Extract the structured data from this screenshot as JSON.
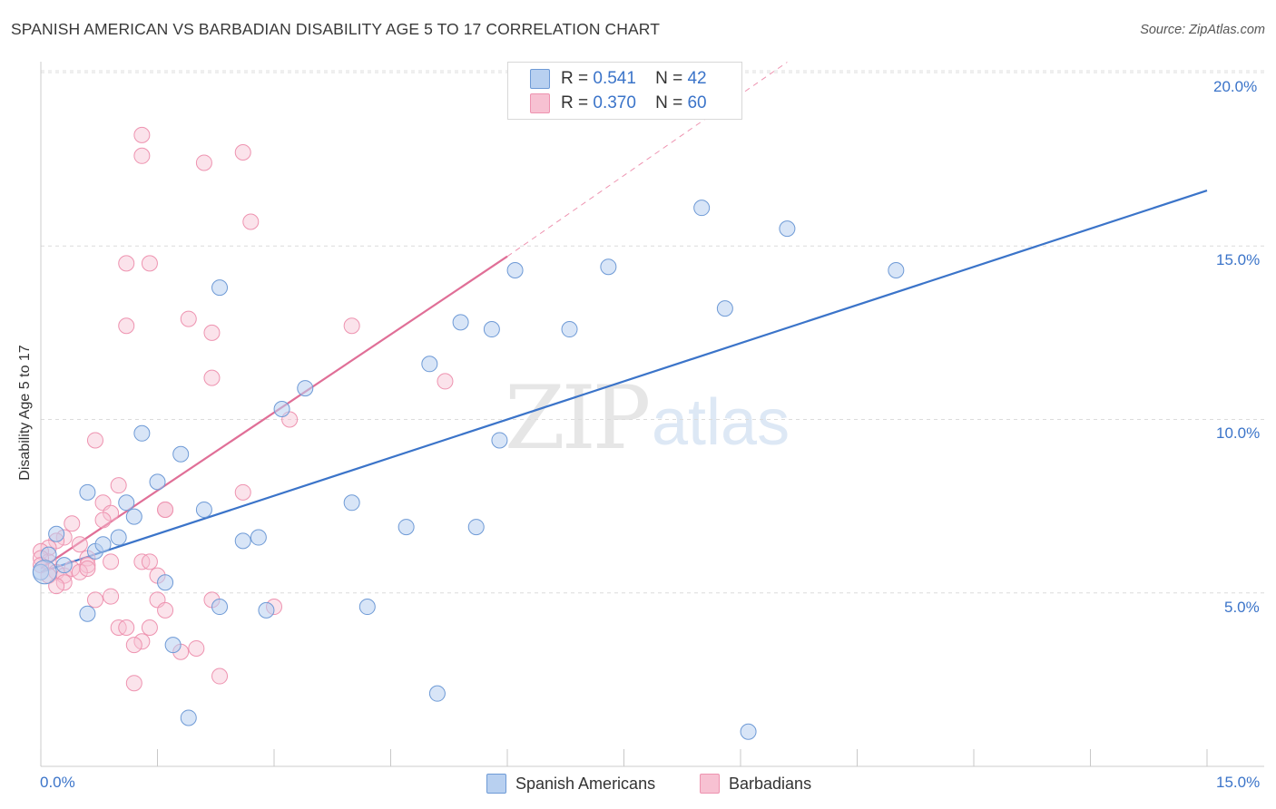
{
  "title": "SPANISH AMERICAN VS BARBADIAN DISABILITY AGE 5 TO 17 CORRELATION CHART",
  "source": "Source: ZipAtlas.com",
  "watermark": {
    "zip": "ZIP",
    "atlas": "atlas"
  },
  "colors": {
    "blue": "#3b74c9",
    "blue_fill": "#b8d0f0",
    "blue_stroke": "#6e9ad6",
    "pink": "#e06f97",
    "pink_fill": "#f7c1d2",
    "pink_stroke": "#ee93b0"
  },
  "legend_top": [
    {
      "r_label": "R =",
      "r_value": "0.541",
      "n_label": "N =",
      "n_value": "42"
    },
    {
      "r_label": "R =",
      "r_value": "0.370",
      "n_label": "N =",
      "n_value": "60"
    }
  ],
  "legend_bottom": [
    {
      "label": "Spanish Americans"
    },
    {
      "label": "Barbadians"
    }
  ],
  "chart_data": {
    "type": "scatter",
    "title": "SPANISH AMERICAN VS BARBADIAN DISABILITY AGE 5 TO 17 CORRELATION CHART",
    "xlabel": "",
    "ylabel": "Disability Age 5 to 17",
    "xlim": [
      0,
      15
    ],
    "ylim": [
      0,
      20
    ],
    "x_tick_labels": [
      "0.0%",
      "15.0%"
    ],
    "y_tick_labels": [
      "5.0%",
      "10.0%",
      "15.0%",
      "20.0%"
    ],
    "y_ticks": [
      5,
      10,
      15,
      20
    ],
    "grid": true,
    "series": [
      {
        "name": "Spanish Americans",
        "color": "#3b74c9",
        "points": [
          [
            0.6,
            7.9
          ],
          [
            0.7,
            6.2
          ],
          [
            1.0,
            6.6
          ],
          [
            1.1,
            7.6
          ],
          [
            1.2,
            7.2
          ],
          [
            1.3,
            9.6
          ],
          [
            1.5,
            8.2
          ],
          [
            1.8,
            9.0
          ],
          [
            1.6,
            5.3
          ],
          [
            1.7,
            3.5
          ],
          [
            1.9,
            1.4
          ],
          [
            2.1,
            7.4
          ],
          [
            2.3,
            13.8
          ],
          [
            2.3,
            4.6
          ],
          [
            2.6,
            6.5
          ],
          [
            2.8,
            6.6
          ],
          [
            2.9,
            4.5
          ],
          [
            3.1,
            10.3
          ],
          [
            3.4,
            10.9
          ],
          [
            4.0,
            7.6
          ],
          [
            4.2,
            4.6
          ],
          [
            4.7,
            6.9
          ],
          [
            5.0,
            11.6
          ],
          [
            5.4,
            12.8
          ],
          [
            5.1,
            2.1
          ],
          [
            5.6,
            6.9
          ],
          [
            5.8,
            12.6
          ],
          [
            5.9,
            9.4
          ],
          [
            6.1,
            14.3
          ],
          [
            6.8,
            12.6
          ],
          [
            7.3,
            14.4
          ],
          [
            8.5,
            16.1
          ],
          [
            8.8,
            13.2
          ],
          [
            9.1,
            1.0
          ],
          [
            9.6,
            15.5
          ],
          [
            11.0,
            14.3
          ],
          [
            0.2,
            6.7
          ],
          [
            0.3,
            5.8
          ],
          [
            0.6,
            4.4
          ],
          [
            0.8,
            6.4
          ],
          [
            0.1,
            6.1
          ],
          [
            0.0,
            5.6
          ]
        ],
        "trend": {
          "x": [
            0.0,
            15.0
          ],
          "y": [
            5.6,
            16.6
          ]
        }
      },
      {
        "name": "Barbadians",
        "color": "#e06f97",
        "points": [
          [
            1.3,
            18.2
          ],
          [
            1.3,
            17.6
          ],
          [
            2.1,
            17.4
          ],
          [
            2.6,
            17.7
          ],
          [
            2.7,
            15.7
          ],
          [
            1.1,
            14.5
          ],
          [
            1.4,
            14.5
          ],
          [
            1.1,
            12.7
          ],
          [
            1.9,
            12.9
          ],
          [
            2.2,
            12.5
          ],
          [
            2.2,
            11.2
          ],
          [
            4.0,
            12.7
          ],
          [
            5.2,
            11.1
          ],
          [
            3.2,
            10.0
          ],
          [
            0.7,
            9.4
          ],
          [
            1.0,
            8.1
          ],
          [
            2.6,
            7.9
          ],
          [
            0.8,
            7.6
          ],
          [
            0.9,
            7.3
          ],
          [
            1.6,
            7.4
          ],
          [
            1.6,
            7.4
          ],
          [
            0.4,
            7.0
          ],
          [
            0.8,
            7.1
          ],
          [
            0.3,
            6.6
          ],
          [
            0.5,
            6.4
          ],
          [
            0.6,
            6.0
          ],
          [
            0.2,
            6.5
          ],
          [
            0.1,
            6.3
          ],
          [
            0.0,
            6.2
          ],
          [
            0.1,
            5.9
          ],
          [
            0.2,
            5.6
          ],
          [
            0.3,
            5.5
          ],
          [
            0.4,
            5.7
          ],
          [
            0.6,
            5.8
          ],
          [
            0.5,
            5.6
          ],
          [
            0.9,
            5.9
          ],
          [
            1.3,
            5.9
          ],
          [
            1.4,
            5.9
          ],
          [
            1.5,
            5.5
          ],
          [
            0.3,
            5.3
          ],
          [
            0.6,
            5.7
          ],
          [
            0.7,
            4.8
          ],
          [
            0.9,
            4.9
          ],
          [
            1.5,
            4.8
          ],
          [
            1.6,
            4.5
          ],
          [
            2.2,
            4.8
          ],
          [
            3.0,
            4.6
          ],
          [
            1.0,
            4.0
          ],
          [
            1.1,
            4.0
          ],
          [
            1.4,
            4.0
          ],
          [
            1.3,
            3.6
          ],
          [
            1.2,
            3.5
          ],
          [
            1.8,
            3.3
          ],
          [
            2.0,
            3.4
          ],
          [
            1.2,
            2.4
          ],
          [
            2.3,
            2.6
          ],
          [
            0.0,
            6.0
          ],
          [
            0.0,
            5.8
          ],
          [
            0.1,
            5.5
          ],
          [
            0.2,
            5.2
          ]
        ],
        "trend": {
          "x": [
            0.0,
            6.0
          ],
          "y": [
            5.7,
            14.7
          ]
        },
        "trend_extension": {
          "x": [
            6.0,
            9.6
          ],
          "y": [
            14.7,
            20.3
          ]
        }
      }
    ]
  }
}
